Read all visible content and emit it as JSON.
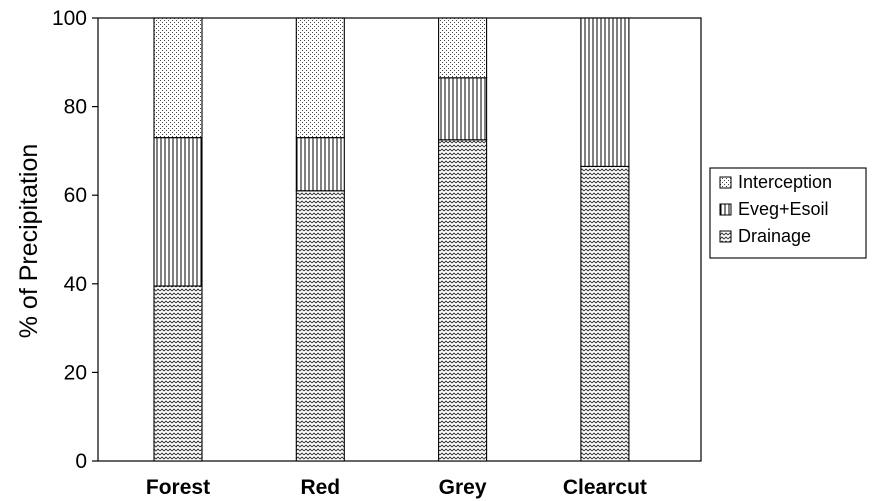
{
  "chart_data": {
    "type": "bar",
    "stacked": true,
    "title": "",
    "xlabel": "",
    "ylabel": "% of Precipitation",
    "ylim": [
      0,
      100
    ],
    "yticks": [
      0,
      20,
      40,
      60,
      80,
      100
    ],
    "categories": [
      "Forest",
      "Red",
      "Grey",
      "Clearcut"
    ],
    "series": [
      {
        "name": "Drainage",
        "values": [
          39.5,
          61,
          72.5,
          66.5
        ],
        "pattern": "zigzag"
      },
      {
        "name": "Eveg+Esoil",
        "values": [
          33.5,
          12,
          14,
          33.5
        ],
        "pattern": "vertical-lines"
      },
      {
        "name": "Interception",
        "values": [
          27,
          27,
          13.5,
          0
        ],
        "pattern": "dots"
      }
    ],
    "legend": {
      "position": "right",
      "order": [
        "Interception",
        "Eveg+Esoil",
        "Drainage"
      ]
    },
    "grid": false
  }
}
